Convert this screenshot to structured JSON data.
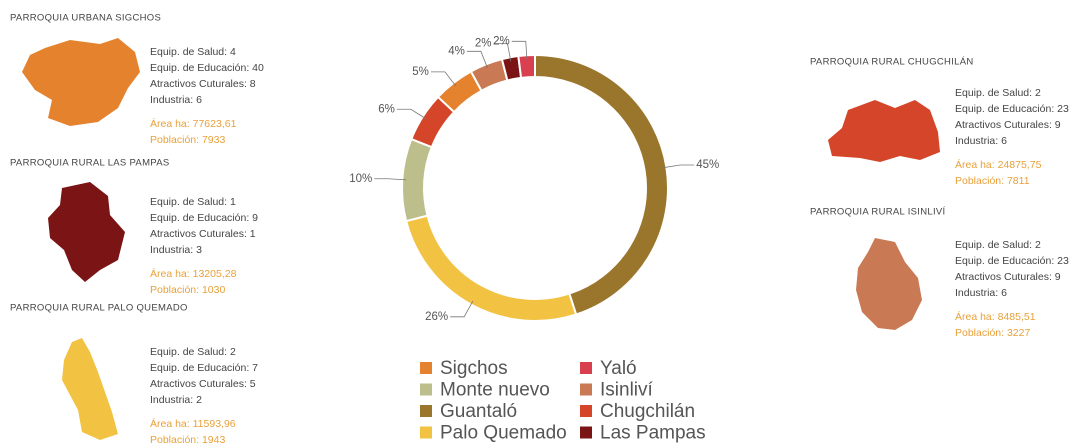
{
  "chart_data": {
    "type": "donut",
    "categories": [
      "Guantaló",
      "Palo Quemado",
      "Monte nuevo",
      "Chugchilán",
      "Sigchos",
      "Isinliví",
      "Las Pampas",
      "Yaló"
    ],
    "values": [
      45,
      26,
      10,
      6,
      5,
      4,
      2,
      2
    ],
    "value_labels": [
      "45%",
      "26%",
      "10%",
      "6%",
      "5%",
      "4%",
      "2%",
      "2%"
    ],
    "colors": [
      "#9a752c",
      "#f2c243",
      "#bcbf8b",
      "#d4452a",
      "#e5822d",
      "#c97a55",
      "#7b1414",
      "#d84050"
    ],
    "legend": "bottom"
  },
  "parishes": [
    {
      "title": "PARROQUIA URBANA SIGCHOS",
      "stats": [
        "Equip. de Salud: 4",
        "Equip. de  Educación: 40",
        "Atractivos Cuturales: 8",
        "Industria: 6"
      ],
      "area": "Área ha: 77623,61",
      "population": "Población: 7933"
    },
    {
      "title": "PARROQUIA RURAL LAS PAMPAS",
      "stats": [
        "Equip. de Salud: 1",
        "Equip. de  Educación: 9",
        "Atractivos Cuturales: 1",
        "Industria: 3"
      ],
      "area": "Área ha: 13205,28",
      "population": "Población: 1030"
    },
    {
      "title": "PARROQUIA RURAL PALO QUEMADO",
      "stats": [
        "Equip. de Salud: 2",
        "Equip. de  Educación: 7",
        "Atractivos Cuturales: 5",
        "Industria: 2"
      ],
      "area": "Área ha: 11593,96",
      "population": "Población: 1943"
    },
    {
      "title": "PARROQUIA RURAL CHUGCHILÁN",
      "stats": [
        "Equip. de Salud: 2",
        "Equip. de  Educación: 23",
        "Atractivos Cuturales: 9",
        "Industria:  6"
      ],
      "area": "Área ha: 24875,75",
      "population": "Población: 7811"
    },
    {
      "title": "PARROQUIA RURAL ISINLIVÍ",
      "stats": [
        "Equip. de Salud: 2",
        "Equip. de  Educación: 23",
        "Atractivos Cuturales: 9",
        "Industria:  6"
      ],
      "area": "Área  ha: 8485,51",
      "population": "Población: 3227"
    }
  ]
}
